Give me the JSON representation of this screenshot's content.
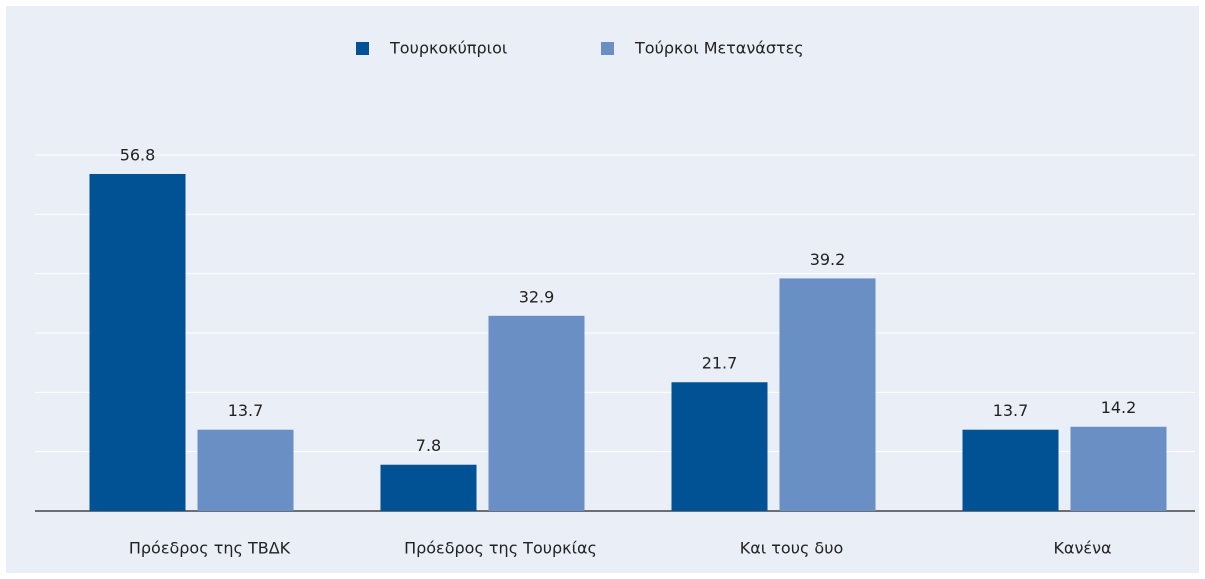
{
  "chart_data": {
    "type": "bar",
    "categories": [
      "Πρόεδρος της ΤΒΔΚ",
      "Πρόεδρος της Τουρκίας",
      "Και τους δυο",
      "Κανένα"
    ],
    "series": [
      {
        "name": "Τουρκοκύπριοι",
        "color": "#005294",
        "values": [
          56.8,
          7.8,
          21.7,
          13.7
        ]
      },
      {
        "name": "Τούρκοι Μετανάστες",
        "color": "#6a8fc4",
        "values": [
          13.7,
          32.9,
          39.2,
          14.2
        ]
      }
    ],
    "ylim": [
      0,
      60
    ],
    "yticks": [
      0,
      10,
      20,
      30,
      40,
      50,
      60
    ],
    "grid": true,
    "legend": "top"
  }
}
